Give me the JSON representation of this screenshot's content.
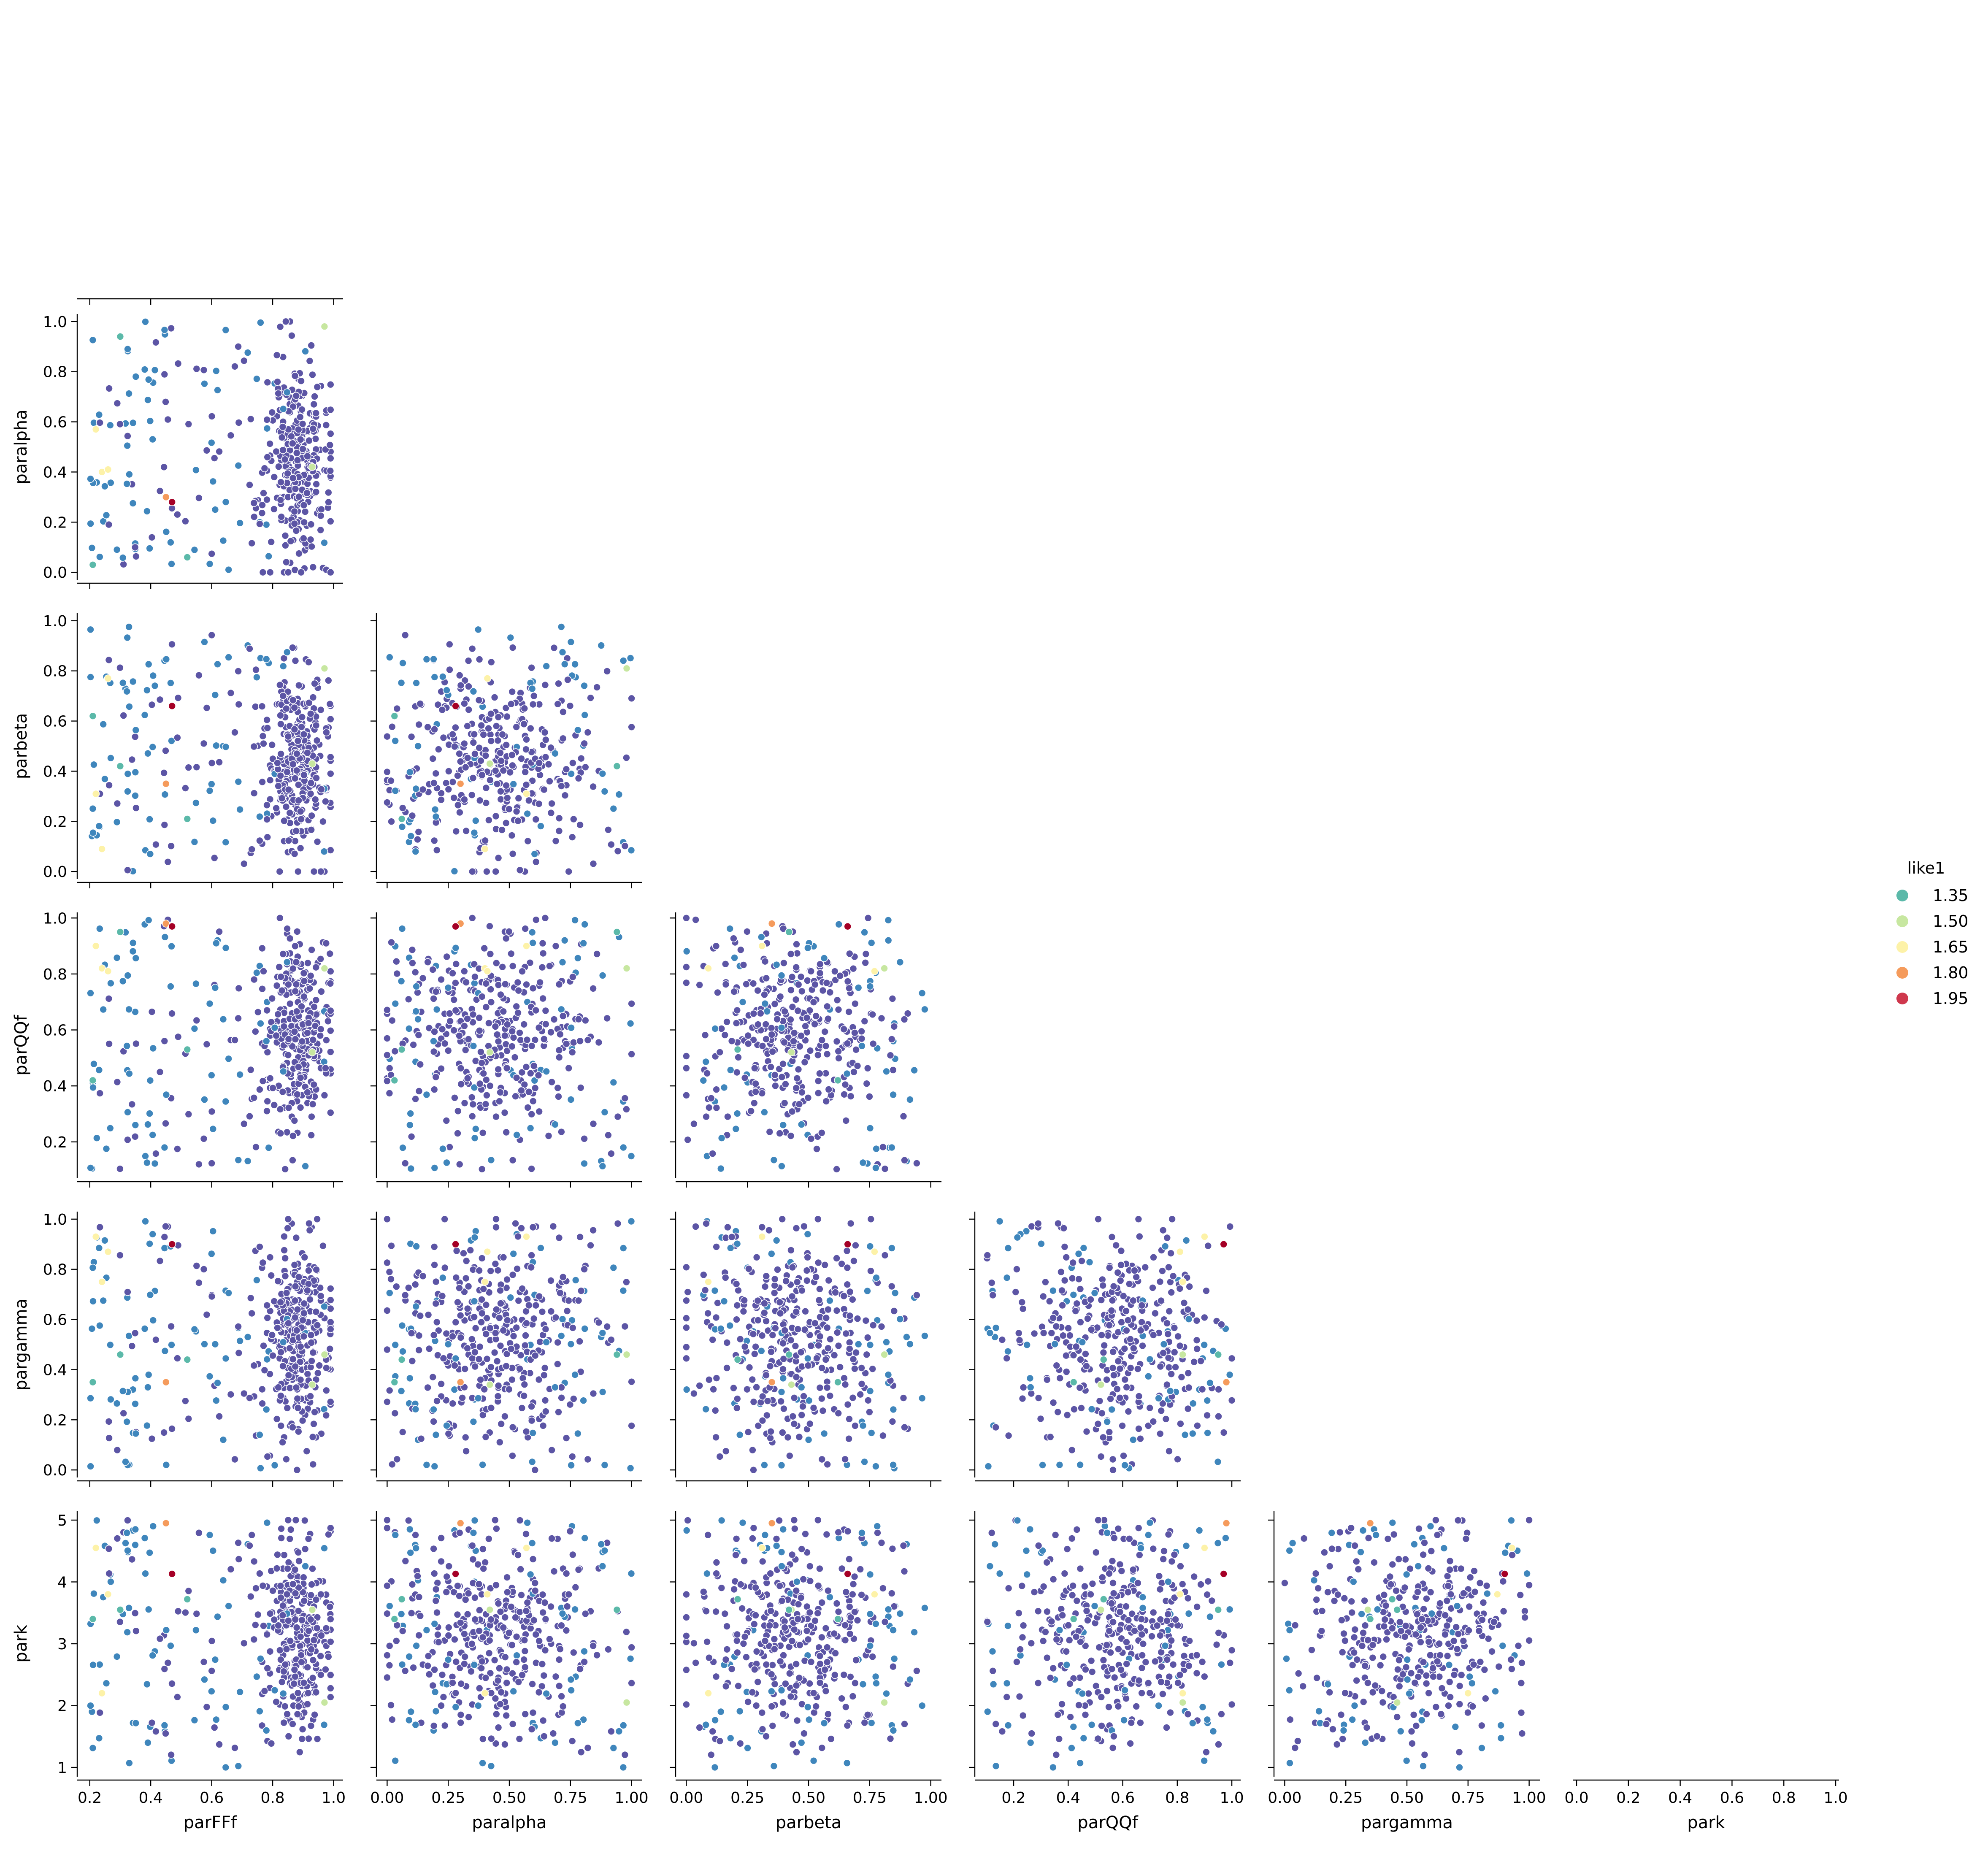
{
  "chart_data": {
    "type": "scatter",
    "layout": "pairplot-lower-triangle",
    "variables": [
      "parFFf",
      "paralpha",
      "parbeta",
      "parQQf",
      "pargamma",
      "park"
    ],
    "axis_ranges": {
      "parFFf": [
        0.17,
        1.02
      ],
      "paralpha": [
        -0.03,
        1.03
      ],
      "parbeta": [
        -0.03,
        1.03
      ],
      "parQQf": [
        0.07,
        1.02
      ],
      "pargamma": [
        -0.03,
        1.03
      ],
      "park": [
        0.85,
        5.15
      ]
    },
    "ticks": {
      "parFFf": [
        "0.2",
        "0.4",
        "0.6",
        "0.8",
        "1.0"
      ],
      "paralpha": [
        "0.0",
        "0.2",
        "0.4",
        "0.6",
        "0.8",
        "1.0"
      ],
      "paralpha_x": [
        "0.00",
        "0.25",
        "0.50",
        "0.75",
        "1.00"
      ],
      "parbeta": [
        "0.0",
        "0.2",
        "0.4",
        "0.6",
        "0.8",
        "1.0"
      ],
      "parbeta_x": [
        "0.00",
        "0.25",
        "0.50",
        "0.75",
        "1.00"
      ],
      "parQQf": [
        "0.2",
        "0.4",
        "0.6",
        "0.8",
        "1.0"
      ],
      "pargamma": [
        "0.0",
        "0.2",
        "0.4",
        "0.6",
        "0.8",
        "1.0"
      ],
      "pargamma_x": [
        "0.00",
        "0.25",
        "0.50",
        "0.75",
        "1.00"
      ],
      "park": [
        "1",
        "2",
        "3",
        "4",
        "5"
      ],
      "park_x": [
        "0.0",
        "0.2",
        "0.4",
        "0.6",
        "0.8",
        "1.0"
      ]
    },
    "legend": {
      "title": "like1",
      "placement": "right",
      "entries": [
        {
          "label": "1.35",
          "color": "#5bb9a9"
        },
        {
          "label": "1.50",
          "color": "#c7e7a0"
        },
        {
          "label": "1.65",
          "color": "#fdf2a8"
        },
        {
          "label": "1.80",
          "color": "#f59b5c"
        },
        {
          "label": "1.95",
          "color": "#cf384d"
        }
      ]
    },
    "colors": {
      "low_like1": "#5c55a5",
      "mid_like1": "#3f86bc",
      "teal": "#5bb9a9",
      "green": "#c7e7a0",
      "yellow": "#fdf2a8",
      "orange": "#f59b5c",
      "red": "#cf384d",
      "dark_red": "#a50026"
    },
    "special_points": [
      {
        "parFFf": 0.45,
        "paralpha": 0.3,
        "parbeta": 0.35,
        "parQQf": 0.98,
        "pargamma": 0.35,
        "park": 4.95,
        "like1": 1.85
      },
      {
        "parFFf": 0.47,
        "paralpha": 0.28,
        "parbeta": 0.66,
        "parQQf": 0.97,
        "pargamma": 0.9,
        "park": 4.13,
        "like1": 2.0
      },
      {
        "parFFf": 0.22,
        "paralpha": 0.57,
        "parbeta": 0.31,
        "parQQf": 0.9,
        "pargamma": 0.93,
        "park": 4.55,
        "like1": 1.65
      },
      {
        "parFFf": 0.24,
        "paralpha": 0.4,
        "parbeta": 0.09,
        "parQQf": 0.82,
        "pargamma": 0.75,
        "park": 2.2,
        "like1": 1.62
      },
      {
        "parFFf": 0.26,
        "paralpha": 0.41,
        "parbeta": 0.77,
        "parQQf": 0.81,
        "pargamma": 0.87,
        "park": 3.8,
        "like1": 1.6
      },
      {
        "parFFf": 0.97,
        "paralpha": 0.98,
        "parbeta": 0.81,
        "parQQf": 0.82,
        "pargamma": 0.46,
        "park": 2.05,
        "like1": 1.5
      },
      {
        "parFFf": 0.93,
        "paralpha": 0.42,
        "parbeta": 0.43,
        "parQQf": 0.52,
        "pargamma": 0.34,
        "park": 3.55,
        "like1": 1.48
      },
      {
        "parFFf": 0.3,
        "paralpha": 0.94,
        "parbeta": 0.42,
        "parQQf": 0.95,
        "pargamma": 0.46,
        "park": 3.55,
        "like1": 1.4
      },
      {
        "parFFf": 0.21,
        "paralpha": 0.03,
        "parbeta": 0.62,
        "parQQf": 0.42,
        "pargamma": 0.35,
        "park": 3.4,
        "like1": 1.38
      },
      {
        "parFFf": 0.52,
        "paralpha": 0.06,
        "parbeta": 0.21,
        "parQQf": 0.53,
        "pargamma": 0.44,
        "park": 3.72,
        "like1": 1.36
      }
    ],
    "point_count": 420,
    "point_distribution": {
      "parFFf_concentration": "most points between 0.75 and 0.98",
      "paralpha_center": 0.45,
      "parbeta_center": 0.45,
      "parQQf_center": 0.62,
      "pargamma_center": 0.55,
      "park_center": 3.2
    }
  }
}
